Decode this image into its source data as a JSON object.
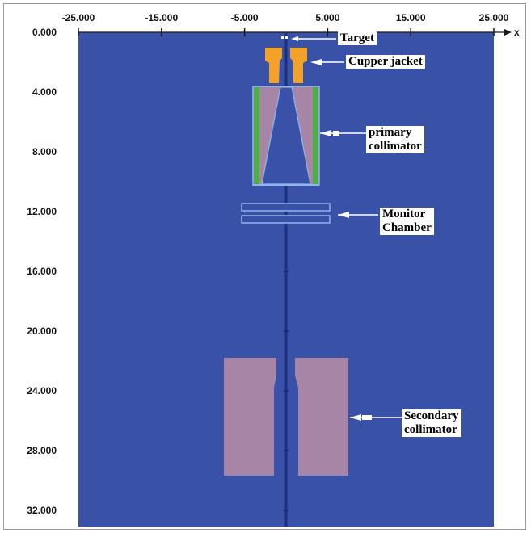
{
  "x_axis": {
    "label": "x",
    "ticks": [
      "-25.000",
      "-15.000",
      "-5.000",
      "5.000",
      "15.000",
      "25.000"
    ],
    "range": [
      -25,
      25
    ]
  },
  "y_axis": {
    "ticks": [
      "0.000",
      "4.000",
      "8.000",
      "12.000",
      "16.000",
      "20.000",
      "24.000",
      "28.000",
      "32.000"
    ],
    "range": [
      0,
      32.5
    ]
  },
  "labels": {
    "target": "Target",
    "cupper_jacket": "Cupper jacket",
    "primary_collimator_line1": "primary",
    "primary_collimator_line2": "collimator",
    "monitor_chamber_line1": "Monitor",
    "monitor_chamber_line2": "Chamber",
    "secondary_collimator_line1": "Secondary",
    "secondary_collimator_line2": "collimator"
  },
  "colors": {
    "background": "#3a51a8",
    "copper": "#f2a228",
    "tungsten": "#a685a6",
    "lining": "#4cae44",
    "outline": "#8fb6e8",
    "beam_axis": "#1d2f7a",
    "arrow": "#ffffff"
  }
}
